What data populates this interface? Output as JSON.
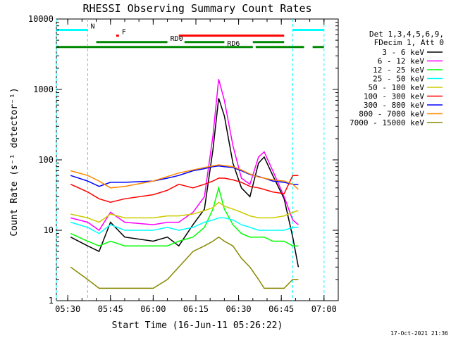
{
  "chart_data": {
    "type": "line",
    "title": "RHESSI Observing Summary Count Rates",
    "xlabel": "Start Time (16-Jun-11 05:26:22)",
    "ylabel": "Count Rate (s⁻¹ detector⁻¹)",
    "y_scale": "log",
    "ylim": [
      1,
      10000
    ],
    "xlim": [
      "05:26",
      "07:05"
    ],
    "x_ticks": [
      "05:30",
      "05:45",
      "06:00",
      "06:15",
      "06:30",
      "06:45",
      "07:00"
    ],
    "y_ticks": [
      "1",
      "10",
      "100",
      "1000",
      "10000"
    ],
    "legend_header": [
      "Det 1,3,4,5,6,9,",
      "FDecim 1, Att 0"
    ],
    "legend_position": "right",
    "footer": "17-Oct-2021 21:36",
    "flags": [
      {
        "label": "N",
        "color": "#00ffff",
        "segments": [
          [
            "05:26",
            "05:37"
          ],
          [
            "06:49",
            "07:00"
          ]
        ],
        "level": 7000
      },
      {
        "label": "F",
        "color": "#ff0000",
        "segments": [
          [
            "05:47",
            "05:48"
          ],
          [
            "06:09",
            "06:46"
          ]
        ],
        "level": 5800
      },
      {
        "label": "RD0",
        "color": "#008800",
        "segments": [
          [
            "05:40",
            "06:05"
          ],
          [
            "06:11",
            "06:25"
          ],
          [
            "06:35",
            "06:46"
          ]
        ],
        "level": 4700
      },
      {
        "label": "RD6",
        "color": "#008800",
        "segments": [
          [
            "05:26",
            "06:25"
          ],
          [
            "06:25",
            "06:35"
          ],
          [
            "06:36",
            "06:53"
          ],
          [
            "06:56",
            "07:00"
          ]
        ],
        "level": 4000
      }
    ],
    "series": [
      {
        "name": "3 - 6 keV",
        "color": "#000000",
        "x": [
          "05:31",
          "05:37",
          "05:41",
          "05:45",
          "05:50",
          "06:00",
          "06:05",
          "06:09",
          "06:14",
          "06:18",
          "06:21",
          "06:23",
          "06:25",
          "06:28",
          "06:31",
          "06:34",
          "06:37",
          "06:39",
          "06:42",
          "06:46",
          "06:49",
          "06:51"
        ],
        "y": [
          8,
          6,
          5,
          13,
          8,
          7,
          8,
          6,
          12,
          20,
          140,
          750,
          420,
          90,
          40,
          30,
          90,
          110,
          60,
          28,
          8,
          3
        ]
      },
      {
        "name": "6 - 12 keV",
        "color": "#ff00ff",
        "x": [
          "05:31",
          "05:37",
          "05:41",
          "05:45",
          "05:50",
          "06:00",
          "06:05",
          "06:09",
          "06:14",
          "06:18",
          "06:21",
          "06:23",
          "06:25",
          "06:28",
          "06:31",
          "06:34",
          "06:37",
          "06:39",
          "06:42",
          "06:46",
          "06:49",
          "06:51"
        ],
        "y": [
          15,
          13,
          10,
          18,
          13,
          12,
          13,
          13,
          18,
          30,
          220,
          1400,
          700,
          160,
          55,
          45,
          110,
          130,
          70,
          30,
          14,
          12
        ]
      },
      {
        "name": "12 - 25 keV",
        "color": "#00ff00",
        "x": [
          "05:31",
          "05:37",
          "05:41",
          "05:45",
          "05:50",
          "06:00",
          "06:05",
          "06:09",
          "06:14",
          "06:18",
          "06:21",
          "06:23",
          "06:25",
          "06:28",
          "06:31",
          "06:34",
          "06:37",
          "06:39",
          "06:42",
          "06:46",
          "06:49",
          "06:51"
        ],
        "y": [
          9,
          7,
          6,
          7,
          6,
          6,
          6,
          7,
          8,
          11,
          20,
          40,
          20,
          12,
          9,
          8,
          8,
          8,
          7,
          7,
          6,
          6
        ]
      },
      {
        "name": "25 - 50 keV",
        "color": "#00ffff",
        "x": [
          "05:31",
          "05:37",
          "05:41",
          "05:45",
          "05:50",
          "06:00",
          "06:05",
          "06:09",
          "06:14",
          "06:18",
          "06:21",
          "06:23",
          "06:25",
          "06:28",
          "06:31",
          "06:34",
          "06:37",
          "06:39",
          "06:42",
          "06:46",
          "06:49",
          "06:51"
        ],
        "y": [
          13,
          11,
          9,
          12,
          10,
          10,
          11,
          10,
          11,
          13,
          14,
          15,
          15,
          14,
          12,
          11,
          10,
          10,
          10,
          10,
          11,
          11
        ]
      },
      {
        "name": "50 - 100 keV",
        "color": "#cccc00",
        "x": [
          "05:31",
          "05:37",
          "05:41",
          "05:45",
          "05:50",
          "06:00",
          "06:05",
          "06:09",
          "06:14",
          "06:18",
          "06:21",
          "06:23",
          "06:25",
          "06:28",
          "06:31",
          "06:34",
          "06:37",
          "06:39",
          "06:42",
          "06:46",
          "06:49",
          "06:51"
        ],
        "y": [
          17,
          15,
          13,
          17,
          15,
          15,
          16,
          16,
          17,
          19,
          21,
          25,
          22,
          20,
          18,
          16,
          15,
          15,
          15,
          16,
          18,
          19
        ]
      },
      {
        "name": "100 - 300 keV",
        "color": "#ff0000",
        "x": [
          "05:31",
          "05:37",
          "05:41",
          "05:45",
          "05:50",
          "06:00",
          "06:05",
          "06:09",
          "06:14",
          "06:18",
          "06:21",
          "06:23",
          "06:25",
          "06:28",
          "06:31",
          "06:34",
          "06:37",
          "06:39",
          "06:42",
          "06:46",
          "06:49",
          "06:51"
        ],
        "y": [
          45,
          35,
          28,
          25,
          28,
          32,
          37,
          45,
          40,
          45,
          50,
          55,
          55,
          52,
          48,
          42,
          40,
          38,
          35,
          33,
          60,
          60
        ]
      },
      {
        "name": "300 - 800 keV",
        "color": "#0000ff",
        "x": [
          "05:31",
          "05:37",
          "05:41",
          "05:45",
          "05:50",
          "06:00",
          "06:05",
          "06:09",
          "06:14",
          "06:18",
          "06:21",
          "06:23",
          "06:25",
          "06:28",
          "06:31",
          "06:34",
          "06:37",
          "06:39",
          "06:42",
          "06:46",
          "06:49",
          "06:51"
        ],
        "y": [
          60,
          50,
          42,
          48,
          48,
          50,
          55,
          60,
          70,
          75,
          80,
          82,
          80,
          78,
          70,
          62,
          58,
          55,
          50,
          48,
          45,
          45
        ]
      },
      {
        "name": "800 - 7000 keV",
        "color": "#ff8800",
        "x": [
          "05:31",
          "05:37",
          "05:41",
          "05:45",
          "05:50",
          "06:00",
          "06:05",
          "06:09",
          "06:14",
          "06:18",
          "06:21",
          "06:23",
          "06:25",
          "06:28",
          "06:31",
          "06:34",
          "06:37",
          "06:39",
          "06:42",
          "06:46",
          "06:49",
          "06:51"
        ],
        "y": [
          70,
          60,
          50,
          40,
          42,
          50,
          58,
          65,
          72,
          78,
          82,
          85,
          83,
          80,
          72,
          63,
          57,
          55,
          52,
          50,
          45,
          38
        ]
      },
      {
        "name": "7000 - 15000 keV",
        "color": "#888800",
        "x": [
          "05:31",
          "05:37",
          "05:41",
          "05:45",
          "05:50",
          "06:00",
          "06:05",
          "06:09",
          "06:14",
          "06:18",
          "06:21",
          "06:23",
          "06:25",
          "06:28",
          "06:31",
          "06:34",
          "06:37",
          "06:39",
          "06:42",
          "06:46",
          "06:49",
          "06:51"
        ],
        "y": [
          3,
          2,
          1.5,
          1.5,
          1.5,
          1.5,
          2,
          3,
          5,
          6,
          7,
          8,
          7,
          6,
          4,
          3,
          2,
          1.5,
          1.5,
          1.5,
          2,
          2
        ]
      }
    ]
  }
}
